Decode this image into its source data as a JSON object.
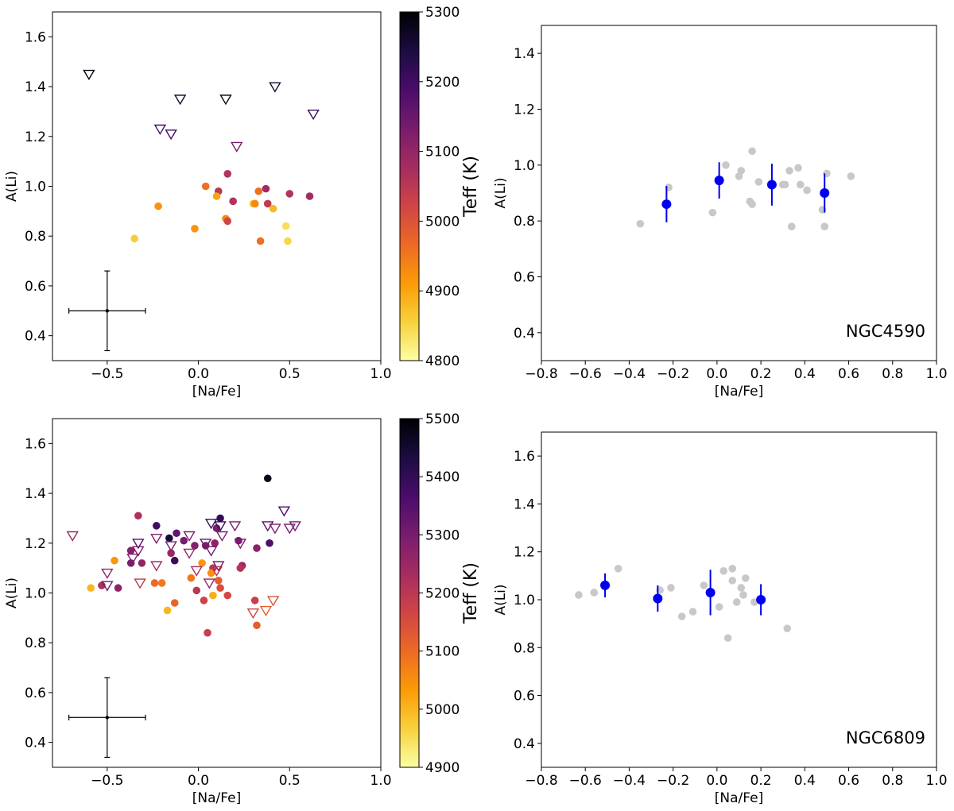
{
  "colors": {
    "measured_avg": "#0000ee",
    "gray_points": "#c8c8c8",
    "inferno": [
      "#fcffa4",
      "#f7d13d",
      "#fb9b06",
      "#ed6925",
      "#cf4446",
      "#a52c60",
      "#781c6d",
      "#4a0c6b",
      "#1b0c41",
      "#000004"
    ]
  },
  "chart_data": [
    {
      "id": "tl",
      "type": "scatter",
      "xlabel": "[Na/Fe]",
      "ylabel": "A(Li)",
      "xlim": [
        -0.8,
        1.0
      ],
      "ylim": [
        0.3,
        1.7
      ],
      "xticks": [
        -0.5,
        0.0,
        0.5,
        1.0
      ],
      "xtick_labels": [
        "−0.5",
        "0.0",
        "0.5",
        "1.0"
      ],
      "yticks": [
        0.4,
        0.6,
        0.8,
        1.0,
        1.2,
        1.4,
        1.6
      ],
      "ytick_labels": [
        "0.4",
        "0.6",
        "0.8",
        "1.0",
        "1.2",
        "1.4",
        "1.6"
      ],
      "colorbar": {
        "label": "Teff (K)",
        "range": [
          4800,
          5300
        ],
        "ticks": [
          4800,
          4900,
          5000,
          5100,
          5200,
          5300
        ],
        "tick_labels": [
          "4800",
          "4900",
          "5000",
          "5100",
          "5200",
          "5300"
        ]
      },
      "error_bar": {
        "x": -0.5,
        "y": 0.5,
        "xerr": 0.21,
        "yerr": 0.16
      },
      "detections": [
        {
          "x": 0.16,
          "y": 1.05,
          "teff": 5060
        },
        {
          "x": 0.37,
          "y": 0.99,
          "teff": 5080
        },
        {
          "x": 0.5,
          "y": 0.97,
          "teff": 5060
        },
        {
          "x": 0.61,
          "y": 0.96,
          "teff": 5080
        },
        {
          "x": 0.04,
          "y": 1.0,
          "teff": 4960
        },
        {
          "x": 0.11,
          "y": 0.98,
          "teff": 5050
        },
        {
          "x": 0.19,
          "y": 0.94,
          "teff": 5060
        },
        {
          "x": 0.33,
          "y": 0.98,
          "teff": 4960
        },
        {
          "x": 0.38,
          "y": 0.93,
          "teff": 5040
        },
        {
          "x": 0.41,
          "y": 0.91,
          "teff": 4880
        },
        {
          "x": 0.3,
          "y": 0.93,
          "teff": 4860
        },
        {
          "x": 0.31,
          "y": 0.93,
          "teff": 4930
        },
        {
          "x": 0.1,
          "y": 0.96,
          "teff": 4900
        },
        {
          "x": 0.15,
          "y": 0.87,
          "teff": 4930
        },
        {
          "x": 0.16,
          "y": 0.86,
          "teff": 5020
        },
        {
          "x": 0.48,
          "y": 0.84,
          "teff": 4840
        },
        {
          "x": 0.49,
          "y": 0.78,
          "teff": 4850
        },
        {
          "x": 0.34,
          "y": 0.78,
          "teff": 4960
        },
        {
          "x": -0.02,
          "y": 0.83,
          "teff": 4920
        },
        {
          "x": -0.22,
          "y": 0.92,
          "teff": 4920
        },
        {
          "x": -0.35,
          "y": 0.79,
          "teff": 4860
        }
      ],
      "upper_limits": [
        {
          "x": -0.6,
          "y": 1.45,
          "teff": 5290
        },
        {
          "x": -0.1,
          "y": 1.35,
          "teff": 5260
        },
        {
          "x": 0.15,
          "y": 1.35,
          "teff": 5280
        },
        {
          "x": 0.42,
          "y": 1.4,
          "teff": 5260
        },
        {
          "x": 0.63,
          "y": 1.29,
          "teff": 5210
        },
        {
          "x": -0.21,
          "y": 1.23,
          "teff": 5200
        },
        {
          "x": -0.15,
          "y": 1.21,
          "teff": 5200
        },
        {
          "x": 0.21,
          "y": 1.16,
          "teff": 5140
        }
      ]
    },
    {
      "id": "tr",
      "type": "scatter",
      "xlabel": "[Na/Fe]",
      "ylabel": "A(Li)",
      "annotation": "NGC4590",
      "xlim": [
        -0.8,
        1.0
      ],
      "ylim": [
        0.3,
        1.5
      ],
      "xticks": [
        -0.8,
        -0.6,
        -0.4,
        -0.2,
        0.0,
        0.2,
        0.4,
        0.6,
        0.8,
        1.0
      ],
      "xtick_labels": [
        "−0.8",
        "−0.6",
        "−0.4",
        "−0.2",
        "0.0",
        "0.2",
        "0.4",
        "0.6",
        "0.8",
        "1.0"
      ],
      "yticks": [
        0.4,
        0.6,
        0.8,
        1.0,
        1.2,
        1.4
      ],
      "ytick_labels": [
        "0.4",
        "0.6",
        "0.8",
        "1.0",
        "1.2",
        "1.4"
      ],
      "gray_points": [
        {
          "x": -0.35,
          "y": 0.79
        },
        {
          "x": -0.22,
          "y": 0.92
        },
        {
          "x": -0.02,
          "y": 0.83
        },
        {
          "x": 0.04,
          "y": 1.0
        },
        {
          "x": 0.1,
          "y": 0.96
        },
        {
          "x": 0.11,
          "y": 0.98
        },
        {
          "x": 0.15,
          "y": 0.87
        },
        {
          "x": 0.16,
          "y": 1.05
        },
        {
          "x": 0.16,
          "y": 0.86
        },
        {
          "x": 0.19,
          "y": 0.94
        },
        {
          "x": 0.3,
          "y": 0.93
        },
        {
          "x": 0.31,
          "y": 0.93
        },
        {
          "x": 0.33,
          "y": 0.98
        },
        {
          "x": 0.34,
          "y": 0.78
        },
        {
          "x": 0.37,
          "y": 0.99
        },
        {
          "x": 0.38,
          "y": 0.93
        },
        {
          "x": 0.41,
          "y": 0.91
        },
        {
          "x": 0.48,
          "y": 0.84
        },
        {
          "x": 0.49,
          "y": 0.78
        },
        {
          "x": 0.5,
          "y": 0.97
        },
        {
          "x": 0.61,
          "y": 0.96
        }
      ],
      "mean_points": [
        {
          "x": -0.23,
          "y": 0.86,
          "yerr": 0.065
        },
        {
          "x": 0.01,
          "y": 0.945,
          "yerr": 0.065
        },
        {
          "x": 0.25,
          "y": 0.93,
          "yerr": 0.075
        },
        {
          "x": 0.49,
          "y": 0.9,
          "yerr": 0.07
        }
      ]
    },
    {
      "id": "bl",
      "type": "scatter",
      "xlabel": "[Na/Fe]",
      "ylabel": "A(Li)",
      "xlim": [
        -0.8,
        1.0
      ],
      "ylim": [
        0.3,
        1.7
      ],
      "xticks": [
        -0.5,
        0.0,
        0.5,
        1.0
      ],
      "xtick_labels": [
        "−0.5",
        "0.0",
        "0.5",
        "1.0"
      ],
      "yticks": [
        0.4,
        0.6,
        0.8,
        1.0,
        1.2,
        1.4,
        1.6
      ],
      "ytick_labels": [
        "0.4",
        "0.6",
        "0.8",
        "1.0",
        "1.2",
        "1.4",
        "1.6"
      ],
      "colorbar": {
        "label": "Teff (K)",
        "range": [
          4900,
          5500
        ],
        "ticks": [
          4900,
          5000,
          5100,
          5200,
          5300,
          5400,
          5500
        ],
        "tick_labels": [
          "4900",
          "5000",
          "5100",
          "5200",
          "5300",
          "5400",
          "5500"
        ]
      },
      "error_bar": {
        "x": -0.5,
        "y": 0.5,
        "xerr": 0.21,
        "yerr": 0.16
      },
      "detections": [
        {
          "x": 0.38,
          "y": 1.46,
          "teff": 5480
        },
        {
          "x": -0.33,
          "y": 1.31,
          "teff": 5220
        },
        {
          "x": -0.23,
          "y": 1.27,
          "teff": 5380
        },
        {
          "x": 0.12,
          "y": 1.3,
          "teff": 5400
        },
        {
          "x": -0.16,
          "y": 1.22,
          "teff": 5440
        },
        {
          "x": 0.1,
          "y": 1.26,
          "teff": 5300
        },
        {
          "x": -0.12,
          "y": 1.24,
          "teff": 5330
        },
        {
          "x": -0.08,
          "y": 1.21,
          "teff": 5300
        },
        {
          "x": -0.37,
          "y": 1.17,
          "teff": 5280
        },
        {
          "x": -0.15,
          "y": 1.16,
          "teff": 5250
        },
        {
          "x": -0.37,
          "y": 1.12,
          "teff": 5300
        },
        {
          "x": -0.31,
          "y": 1.12,
          "teff": 5260
        },
        {
          "x": -0.13,
          "y": 1.13,
          "teff": 5390
        },
        {
          "x": -0.02,
          "y": 1.19,
          "teff": 5280
        },
        {
          "x": 0.04,
          "y": 1.19,
          "teff": 5290
        },
        {
          "x": 0.09,
          "y": 1.2,
          "teff": 5270
        },
        {
          "x": 0.22,
          "y": 1.21,
          "teff": 5300
        },
        {
          "x": 0.32,
          "y": 1.18,
          "teff": 5270
        },
        {
          "x": 0.39,
          "y": 1.2,
          "teff": 5360
        },
        {
          "x": 0.24,
          "y": 1.11,
          "teff": 5250
        },
        {
          "x": 0.23,
          "y": 1.1,
          "teff": 5210
        },
        {
          "x": 0.08,
          "y": 1.1,
          "teff": 5200
        },
        {
          "x": 0.07,
          "y": 1.08,
          "teff": 5050
        },
        {
          "x": -0.46,
          "y": 1.13,
          "teff": 5040
        },
        {
          "x": -0.53,
          "y": 1.03,
          "teff": 5220
        },
        {
          "x": -0.59,
          "y": 1.02,
          "teff": 5000
        },
        {
          "x": -0.44,
          "y": 1.02,
          "teff": 5270
        },
        {
          "x": -0.24,
          "y": 1.04,
          "teff": 5100
        },
        {
          "x": -0.2,
          "y": 1.04,
          "teff": 5080
        },
        {
          "x": -0.04,
          "y": 1.06,
          "teff": 5080
        },
        {
          "x": 0.02,
          "y": 1.12,
          "teff": 5040
        },
        {
          "x": 0.11,
          "y": 1.05,
          "teff": 5120
        },
        {
          "x": -0.01,
          "y": 1.01,
          "teff": 5200
        },
        {
          "x": 0.12,
          "y": 1.02,
          "teff": 5150
        },
        {
          "x": 0.08,
          "y": 0.99,
          "teff": 5010
        },
        {
          "x": 0.16,
          "y": 0.99,
          "teff": 5160
        },
        {
          "x": 0.31,
          "y": 0.97,
          "teff": 5180
        },
        {
          "x": -0.13,
          "y": 0.96,
          "teff": 5110
        },
        {
          "x": 0.03,
          "y": 0.97,
          "teff": 5170
        },
        {
          "x": -0.17,
          "y": 0.93,
          "teff": 5000
        },
        {
          "x": 0.32,
          "y": 0.87,
          "teff": 5120
        },
        {
          "x": 0.05,
          "y": 0.84,
          "teff": 5180
        }
      ],
      "upper_limits": [
        {
          "x": -0.69,
          "y": 1.23,
          "teff": 5250
        },
        {
          "x": -0.5,
          "y": 1.08,
          "teff": 5260
        },
        {
          "x": -0.5,
          "y": 1.03,
          "teff": 5310
        },
        {
          "x": -0.36,
          "y": 1.14,
          "teff": 5290
        },
        {
          "x": -0.33,
          "y": 1.2,
          "teff": 5350
        },
        {
          "x": -0.33,
          "y": 1.17,
          "teff": 5280
        },
        {
          "x": -0.23,
          "y": 1.22,
          "teff": 5280
        },
        {
          "x": -0.23,
          "y": 1.11,
          "teff": 5240
        },
        {
          "x": -0.32,
          "y": 1.04,
          "teff": 5200
        },
        {
          "x": -0.15,
          "y": 1.19,
          "teff": 5300
        },
        {
          "x": -0.05,
          "y": 1.23,
          "teff": 5300
        },
        {
          "x": -0.05,
          "y": 1.16,
          "teff": 5250
        },
        {
          "x": -0.01,
          "y": 1.09,
          "teff": 5230
        },
        {
          "x": 0.04,
          "y": 1.2,
          "teff": 5320
        },
        {
          "x": 0.07,
          "y": 1.28,
          "teff": 5400
        },
        {
          "x": 0.07,
          "y": 1.17,
          "teff": 5300
        },
        {
          "x": 0.06,
          "y": 1.04,
          "teff": 5260
        },
        {
          "x": 0.12,
          "y": 1.27,
          "teff": 5390
        },
        {
          "x": 0.13,
          "y": 1.23,
          "teff": 5300
        },
        {
          "x": 0.11,
          "y": 1.11,
          "teff": 5300
        },
        {
          "x": 0.1,
          "y": 1.09,
          "teff": 5210
        },
        {
          "x": 0.2,
          "y": 1.27,
          "teff": 5300
        },
        {
          "x": 0.23,
          "y": 1.2,
          "teff": 5300
        },
        {
          "x": 0.38,
          "y": 1.27,
          "teff": 5340
        },
        {
          "x": 0.42,
          "y": 1.26,
          "teff": 5300
        },
        {
          "x": 0.47,
          "y": 1.33,
          "teff": 5360
        },
        {
          "x": 0.5,
          "y": 1.26,
          "teff": 5300
        },
        {
          "x": 0.53,
          "y": 1.27,
          "teff": 5300
        },
        {
          "x": 0.3,
          "y": 0.92,
          "teff": 5170
        },
        {
          "x": 0.37,
          "y": 0.93,
          "teff": 5120
        },
        {
          "x": 0.41,
          "y": 0.97,
          "teff": 5140
        }
      ]
    },
    {
      "id": "br",
      "type": "scatter",
      "xlabel": "[Na/Fe]",
      "ylabel": "A(Li)",
      "annotation": "NGC6809",
      "xlim": [
        -0.8,
        1.0
      ],
      "ylim": [
        0.3,
        1.7
      ],
      "xticks": [
        -0.8,
        -0.6,
        -0.4,
        -0.2,
        0.0,
        0.2,
        0.4,
        0.6,
        0.8,
        1.0
      ],
      "xtick_labels": [
        "−0.8",
        "−0.6",
        "−0.4",
        "−0.2",
        "0.0",
        "0.2",
        "0.4",
        "0.6",
        "0.8",
        "1.0"
      ],
      "yticks": [
        0.4,
        0.6,
        0.8,
        1.0,
        1.2,
        1.4,
        1.6
      ],
      "ytick_labels": [
        "0.4",
        "0.6",
        "0.8",
        "1.0",
        "1.2",
        "1.4",
        "1.6"
      ],
      "gray_points": [
        {
          "x": -0.63,
          "y": 1.02
        },
        {
          "x": -0.56,
          "y": 1.03
        },
        {
          "x": -0.45,
          "y": 1.13
        },
        {
          "x": -0.26,
          "y": 1.04
        },
        {
          "x": -0.21,
          "y": 1.05
        },
        {
          "x": -0.16,
          "y": 0.93
        },
        {
          "x": -0.11,
          "y": 0.95
        },
        {
          "x": -0.06,
          "y": 1.06
        },
        {
          "x": 0.01,
          "y": 0.97
        },
        {
          "x": 0.03,
          "y": 1.12
        },
        {
          "x": 0.05,
          "y": 0.84
        },
        {
          "x": 0.07,
          "y": 1.13
        },
        {
          "x": 0.07,
          "y": 1.08
        },
        {
          "x": 0.09,
          "y": 0.99
        },
        {
          "x": 0.11,
          "y": 1.05
        },
        {
          "x": 0.12,
          "y": 1.02
        },
        {
          "x": 0.13,
          "y": 1.09
        },
        {
          "x": 0.17,
          "y": 0.99
        },
        {
          "x": 0.32,
          "y": 0.88
        }
      ],
      "mean_points": [
        {
          "x": -0.51,
          "y": 1.06,
          "yerr": 0.05
        },
        {
          "x": -0.27,
          "y": 1.005,
          "yerr": 0.055
        },
        {
          "x": -0.03,
          "y": 1.03,
          "yerr": 0.095
        },
        {
          "x": 0.2,
          "y": 1.0,
          "yerr": 0.065
        }
      ]
    }
  ]
}
